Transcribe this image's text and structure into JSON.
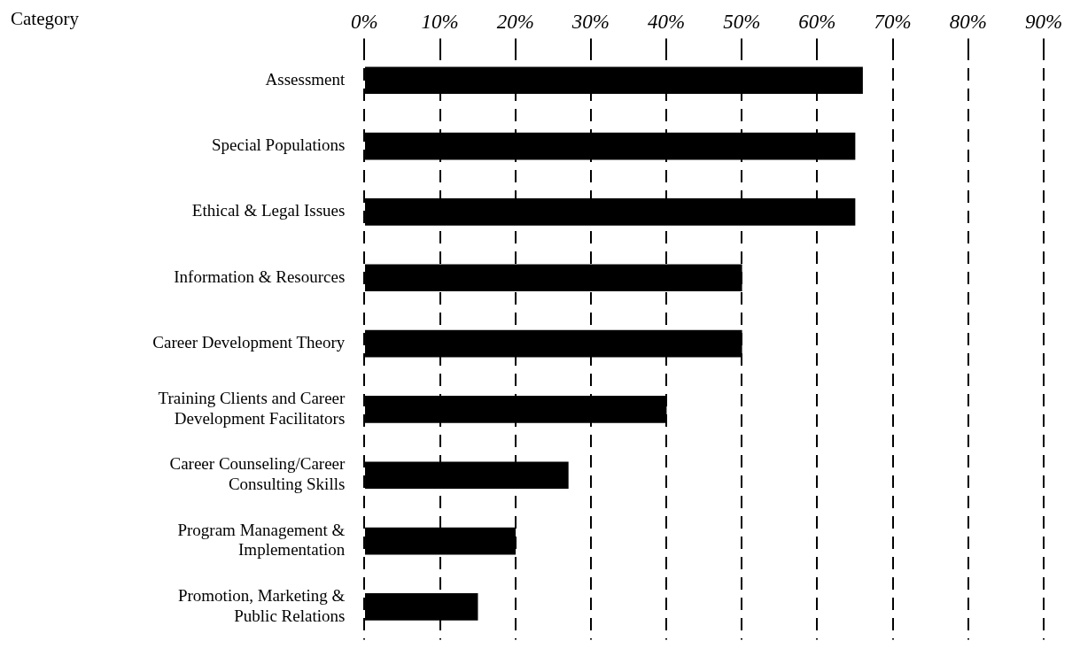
{
  "chart_data": {
    "type": "bar",
    "orientation": "horizontal",
    "annotations": [
      "Category"
    ],
    "categories": [
      "Assessment",
      "Special Populations",
      "Ethical & Legal Issues",
      "Information & Resources",
      "Career Development Theory",
      "Training Clients and Career Development Facilitators",
      "Career Counseling/Career Consulting Skills",
      "Program Management & Implementation",
      "Promotion, Marketing & Public Relations"
    ],
    "values": [
      66,
      65,
      65,
      50,
      50,
      40,
      27,
      20,
      15
    ],
    "color": "#000000",
    "xlim": [
      0,
      90
    ],
    "xticks": [
      {
        "value": 0,
        "label": "0%"
      },
      {
        "value": 10,
        "label": "10%"
      },
      {
        "value": 20,
        "label": "20%"
      },
      {
        "value": 30,
        "label": "30%"
      },
      {
        "value": 40,
        "label": "40%"
      },
      {
        "value": 50,
        "label": "50%"
      },
      {
        "value": 60,
        "label": "60%"
      },
      {
        "value": 70,
        "label": "70%"
      },
      {
        "value": 80,
        "label": "80%"
      },
      {
        "value": 90,
        "label": "90%"
      }
    ],
    "grid": "x",
    "line_style": "dashed",
    "legend": false
  }
}
